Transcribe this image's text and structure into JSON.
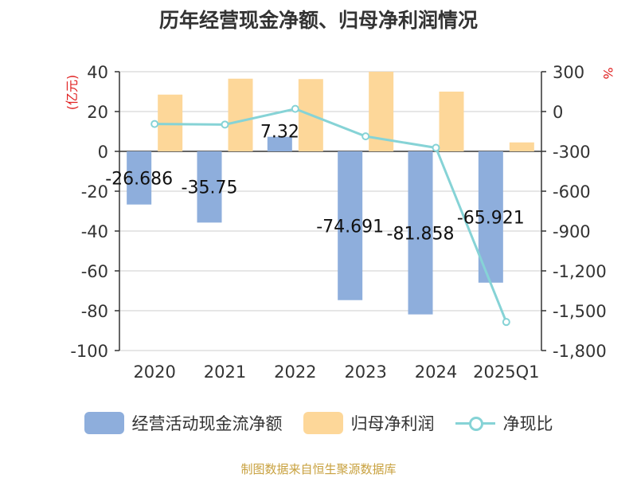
{
  "title": "历年经营现金净额、归母净利润情况",
  "source": "制图数据来自恒生聚源数据库",
  "colors": {
    "cash_flow": "#8eaedc",
    "net_profit": "#fdd799",
    "ratio": "#86d3d6",
    "unit_label": "#e02020",
    "axis": "#333333",
    "grid": "#cccccc"
  },
  "chart_data": {
    "type": "bar",
    "categories": [
      "2020",
      "2021",
      "2022",
      "2023",
      "2024",
      "2025Q1"
    ],
    "left_axis": {
      "unit": "(亿元)",
      "ylim": [
        -100,
        40
      ],
      "ticks": [
        "40",
        "20",
        "0",
        "-20",
        "-40",
        "-60",
        "-80",
        "-100"
      ]
    },
    "right_axis": {
      "unit": "%",
      "ylim": [
        -1800,
        300
      ],
      "ticks": [
        "300",
        "0",
        "-300",
        "-600",
        "-900",
        "-1,200",
        "-1,500",
        "-1,800"
      ]
    },
    "series": [
      {
        "name": "经营活动现金流净额",
        "type": "bar",
        "axis": "left",
        "values": [
          -26.686,
          -35.75,
          7.32,
          -74.691,
          -81.858,
          -65.921
        ],
        "labels": [
          "-26.686",
          "-35.75",
          "7.32",
          "-74.691",
          "-81.858",
          "-65.921"
        ]
      },
      {
        "name": "归母净利润",
        "type": "bar",
        "axis": "left",
        "values": [
          28.5,
          36.5,
          36.3,
          40.0,
          30.0,
          4.5
        ]
      },
      {
        "name": "净现比",
        "type": "line",
        "axis": "right",
        "values": [
          -93.6,
          -97.9,
          20.2,
          -186.7,
          -272.9,
          -1585.0
        ]
      }
    ],
    "grid": true,
    "legend_position": "bottom"
  }
}
